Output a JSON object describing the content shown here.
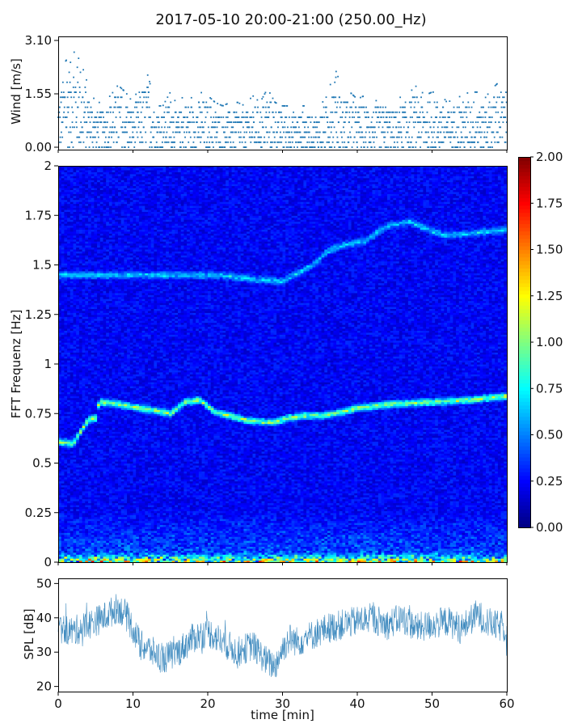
{
  "title": "2017-05-10 20:00-21:00 (250.00_Hz)",
  "chart_data": [
    {
      "type": "scatter",
      "name": "wind",
      "ylabel": "Wind [m/s]",
      "xlim": [
        0,
        60
      ],
      "ylim": [
        0,
        3.1
      ],
      "yticks": [
        "0.00",
        "1.55",
        "3.10"
      ],
      "color": "#1f77b4",
      "description_points": {
        "x_min": [
          0,
          1,
          2,
          3,
          4,
          5,
          6,
          7,
          8,
          9,
          10,
          11,
          12,
          13,
          14,
          15,
          16,
          17,
          18,
          19,
          20,
          21,
          22,
          23,
          24,
          25,
          26,
          27,
          28,
          29,
          30,
          31,
          32,
          33,
          34,
          35,
          36,
          37,
          38,
          39,
          40,
          41,
          42,
          43,
          44,
          45,
          46,
          47,
          48,
          49,
          50,
          51,
          52,
          53,
          54,
          55,
          56,
          57,
          58,
          59,
          60
        ],
        "typical_max": [
          1.3,
          2.2,
          2.5,
          2.2,
          1.5,
          1.0,
          1.0,
          1.2,
          1.5,
          1.3,
          1.0,
          1.6,
          1.8,
          0.9,
          0.9,
          1.3,
          0.9,
          1.3,
          1.1,
          1.3,
          1.2,
          1.0,
          0.9,
          1.0,
          1.0,
          0.9,
          1.2,
          1.0,
          1.4,
          1.0,
          0.9,
          0.9,
          0.9,
          0.9,
          0.8,
          0.9,
          1.2,
          2.0,
          1.4,
          1.3,
          1.1,
          1.2,
          1.0,
          1.1,
          1.1,
          1.0,
          1.2,
          1.3,
          1.5,
          1.2,
          1.3,
          1.3,
          1.0,
          1.1,
          1.2,
          1.3,
          1.3,
          1.1,
          1.4,
          1.6,
          1.5
        ]
      }
    },
    {
      "type": "heatmap",
      "name": "spectrogram",
      "ylabel": "FFT Frequenz [Hz]",
      "xlim": [
        0,
        60
      ],
      "ylim": [
        0,
        2
      ],
      "yticks": [
        "0",
        "0.25",
        "0.5",
        "0.75",
        "1",
        "1.25",
        "1.5",
        "1.75",
        "2"
      ],
      "colorbar": {
        "range": [
          0,
          2
        ],
        "ticks": [
          "0.00",
          "0.25",
          "0.50",
          "0.75",
          "1.00",
          "1.25",
          "1.50",
          "1.75",
          "2.00"
        ],
        "colormap": "jet"
      },
      "ridges": [
        {
          "points": [
            [
              0,
              0.61
            ],
            [
              2,
              0.6
            ],
            [
              4,
              0.72
            ],
            [
              5,
              0.73
            ],
            [
              5.5,
              0.81
            ],
            [
              8,
              0.8
            ],
            [
              9.5,
              0.79
            ],
            [
              11,
              0.78
            ],
            [
              14,
              0.76
            ],
            [
              15,
              0.75
            ],
            [
              17,
              0.81
            ],
            [
              19,
              0.82
            ],
            [
              21,
              0.76
            ],
            [
              23,
              0.74
            ],
            [
              25,
              0.72
            ],
            [
              27,
              0.71
            ],
            [
              29,
              0.71
            ],
            [
              31,
              0.73
            ],
            [
              33,
              0.74
            ],
            [
              35,
              0.74
            ],
            [
              37,
              0.75
            ],
            [
              40,
              0.78
            ],
            [
              45,
              0.8
            ],
            [
              50,
              0.81
            ],
            [
              55,
              0.82
            ],
            [
              60,
              0.84
            ]
          ],
          "level": 1.05
        },
        {
          "points": [
            [
              22,
              1.45
            ],
            [
              26,
              1.43
            ],
            [
              30,
              1.42
            ],
            [
              34,
              1.5
            ],
            [
              36,
              1.57
            ],
            [
              38,
              1.6
            ],
            [
              41,
              1.62
            ],
            [
              44,
              1.7
            ],
            [
              47,
              1.72
            ],
            [
              50,
              1.67
            ],
            [
              52,
              1.65
            ],
            [
              55,
              1.66
            ],
            [
              60,
              1.68
            ]
          ],
          "level": 0.55
        }
      ],
      "low_freq_band": {
        "freq_max": 0.05,
        "level": 1.4
      }
    },
    {
      "type": "line",
      "name": "spl",
      "ylabel": "SPL [dB]",
      "xlabel": "time [min]",
      "xlim": [
        0,
        60
      ],
      "ylim": [
        18.5,
        51.5
      ],
      "xticks": [
        "0",
        "10",
        "20",
        "30",
        "40",
        "50",
        "60"
      ],
      "yticks": [
        "20",
        "30",
        "40",
        "50"
      ],
      "color": "#1f77b4",
      "envelope": {
        "x_min": [
          0,
          2,
          4,
          6,
          8,
          9,
          10,
          11,
          12,
          14,
          16,
          18,
          20,
          22,
          24,
          26,
          28,
          29,
          30,
          31,
          32,
          34,
          36,
          38,
          40,
          42,
          44,
          46,
          48,
          50,
          52,
          54,
          56,
          58,
          60
        ],
        "mean": [
          37,
          36,
          38,
          40,
          43,
          41,
          37,
          32,
          31,
          28,
          30,
          34,
          36,
          33,
          30,
          32,
          27,
          26,
          31,
          34,
          33,
          35,
          37,
          38,
          39,
          40,
          38,
          40,
          37,
          38,
          39,
          37,
          41,
          38,
          37
        ]
      }
    }
  ]
}
